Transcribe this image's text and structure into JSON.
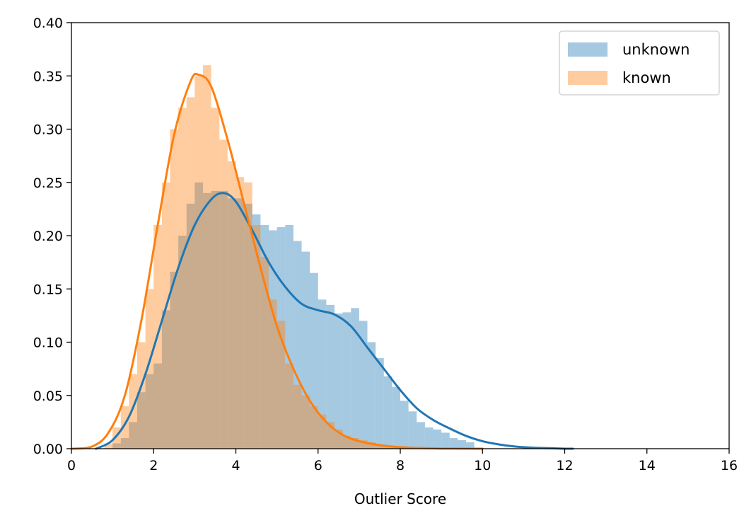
{
  "chart_data": {
    "type": "histogram",
    "title": "",
    "xlabel": "Outlier Score",
    "ylabel": "",
    "xlim": [
      0,
      16
    ],
    "ylim": [
      0,
      0.4
    ],
    "xticks": [
      0,
      2,
      4,
      6,
      8,
      10,
      12,
      14,
      16
    ],
    "yticks": [
      0.0,
      0.05,
      0.1,
      0.15,
      0.2,
      0.25,
      0.3,
      0.35,
      0.4
    ],
    "xtick_labels": [
      "0",
      "2",
      "4",
      "6",
      "8",
      "10",
      "12",
      "14",
      "16"
    ],
    "ytick_labels": [
      "0.00",
      "0.05",
      "0.10",
      "0.15",
      "0.20",
      "0.25",
      "0.30",
      "0.35",
      "0.40"
    ],
    "grid": false,
    "legend_position": "top-right",
    "series": [
      {
        "name": "unknown",
        "bar_color": "#1f77b4",
        "bar_opacity": 0.4,
        "line_color": "#1f77b4",
        "bin_width": 0.2,
        "bin_starts": [
          1.0,
          1.2,
          1.4,
          1.6,
          1.8,
          2.0,
          2.2,
          2.4,
          2.6,
          2.8,
          3.0,
          3.2,
          3.4,
          3.6,
          3.8,
          4.0,
          4.2,
          4.4,
          4.6,
          4.8,
          5.0,
          5.2,
          5.4,
          5.6,
          5.8,
          6.0,
          6.2,
          6.4,
          6.6,
          6.8,
          7.0,
          7.2,
          7.4,
          7.6,
          7.8,
          8.0,
          8.2,
          8.4,
          8.6,
          8.8,
          9.0,
          9.2,
          9.4,
          9.6
        ],
        "bin_heights": [
          0.005,
          0.01,
          0.025,
          0.053,
          0.07,
          0.08,
          0.13,
          0.166,
          0.2,
          0.23,
          0.25,
          0.24,
          0.242,
          0.242,
          0.235,
          0.235,
          0.23,
          0.22,
          0.21,
          0.205,
          0.208,
          0.21,
          0.195,
          0.185,
          0.165,
          0.14,
          0.135,
          0.127,
          0.128,
          0.132,
          0.12,
          0.1,
          0.085,
          0.068,
          0.058,
          0.045,
          0.035,
          0.025,
          0.02,
          0.018,
          0.015,
          0.01,
          0.008,
          0.006
        ],
        "kde_x": [
          0.6,
          1.0,
          1.4,
          1.8,
          2.2,
          2.6,
          3.0,
          3.4,
          3.7,
          4.0,
          4.4,
          4.8,
          5.2,
          5.6,
          6.0,
          6.4,
          6.8,
          7.2,
          7.6,
          8.0,
          8.4,
          8.8,
          9.2,
          9.6,
          10.0,
          10.4,
          10.8,
          11.2,
          11.6,
          12.0,
          12.2
        ],
        "kde_y": [
          0.0,
          0.008,
          0.03,
          0.07,
          0.12,
          0.17,
          0.21,
          0.234,
          0.24,
          0.232,
          0.205,
          0.175,
          0.152,
          0.136,
          0.13,
          0.126,
          0.115,
          0.095,
          0.075,
          0.055,
          0.038,
          0.027,
          0.019,
          0.012,
          0.007,
          0.004,
          0.002,
          0.001,
          0.0005,
          0.0,
          0.0
        ]
      },
      {
        "name": "known",
        "bar_color": "#ff7f0e",
        "bar_opacity": 0.4,
        "line_color": "#ff7f0e",
        "bin_width": 0.2,
        "bin_starts": [
          0.8,
          1.0,
          1.2,
          1.4,
          1.6,
          1.8,
          2.0,
          2.2,
          2.4,
          2.6,
          2.8,
          3.0,
          3.2,
          3.4,
          3.6,
          3.8,
          4.0,
          4.2,
          4.4,
          4.6,
          4.8,
          5.0,
          5.2,
          5.4,
          5.6,
          5.8,
          6.0,
          6.2,
          6.4,
          6.6,
          6.8,
          7.0,
          7.2,
          7.4,
          7.6,
          7.8
        ],
        "bin_heights": [
          0.005,
          0.02,
          0.04,
          0.07,
          0.1,
          0.15,
          0.21,
          0.25,
          0.3,
          0.32,
          0.33,
          0.35,
          0.36,
          0.32,
          0.29,
          0.27,
          0.255,
          0.25,
          0.21,
          0.18,
          0.14,
          0.12,
          0.08,
          0.06,
          0.05,
          0.04,
          0.032,
          0.025,
          0.018,
          0.012,
          0.01,
          0.008,
          0.006,
          0.004,
          0.003,
          0.002
        ],
        "kde_x": [
          0.0,
          0.5,
          0.9,
          1.3,
          1.7,
          2.1,
          2.5,
          2.9,
          3.1,
          3.4,
          3.8,
          4.2,
          4.6,
          5.0,
          5.4,
          5.8,
          6.2,
          6.6,
          7.0,
          7.4,
          7.8,
          8.2,
          8.6,
          9.0,
          9.5,
          10.0
        ],
        "kde_y": [
          0.0,
          0.002,
          0.015,
          0.05,
          0.12,
          0.21,
          0.295,
          0.345,
          0.351,
          0.34,
          0.29,
          0.23,
          0.17,
          0.115,
          0.075,
          0.045,
          0.025,
          0.013,
          0.007,
          0.004,
          0.002,
          0.001,
          0.0005,
          0.0002,
          0.0001,
          0.0
        ]
      }
    ]
  }
}
